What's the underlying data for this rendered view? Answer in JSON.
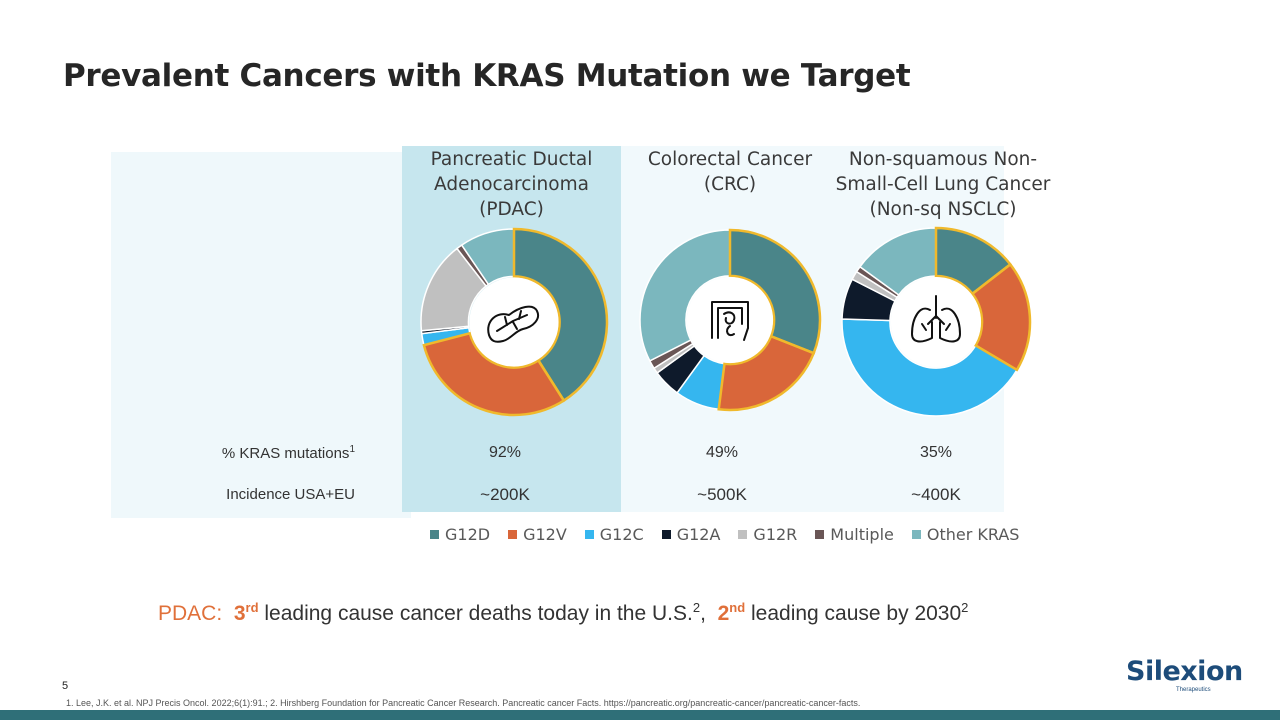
{
  "slide": {
    "title": "Prevalent Cancers with KRAS Mutation we  Target",
    "page_number": "5",
    "footnote": "1.  Lee, J.K. et al. NPJ Precis Oncol. 2022;6(1):91.; 2. Hirshberg Foundation for Pancreatic Cancer Research. Pancreatic cancer Facts. https://pancreatic.org/pancreatic-cancer/pancreatic-cancer-facts.",
    "row_kras_label": "% KRAS mutations",
    "row_kras_sup": "1",
    "row_incidence_label": "Incidence USA+EU",
    "logo_name": "Silexion",
    "logo_sub": "Therapeutics"
  },
  "note": {
    "lead": "PDAC:",
    "rank1": "3",
    "rank1_sup": "rd",
    "text1": " leading cause cancer deaths today in the U.S.",
    "ref1": "2",
    "sep": ",  ",
    "rank2": "2",
    "rank2_sup": "nd",
    "text2": " leading cause by 2030",
    "ref2": "2"
  },
  "colors": {
    "G12D": "#4a8589",
    "G12V": "#d9663a",
    "G12C": "#35b6ef",
    "G12A": "#0e1a2b",
    "G12R": "#c0c0c0",
    "Multiple": "#6a5656",
    "Other KRAS": "#7bb7be",
    "highlight": "#f0b92c"
  },
  "chart_data": [
    {
      "type": "pie",
      "title_lines": [
        "Pancreatic Ductal",
        "Adenocarcinoma",
        "(PDAC)"
      ],
      "icon": "pancreas-icon",
      "kras_pct": "92%",
      "incidence": "~200K",
      "categories": [
        "G12D",
        "G12V",
        "G12C",
        "G12A",
        "G12R",
        "Multiple",
        "Other KRAS"
      ],
      "values": [
        41,
        30,
        2,
        0.5,
        16,
        1,
        9.5
      ],
      "highlighted": [
        "G12D",
        "G12V"
      ]
    },
    {
      "type": "pie",
      "title_lines": [
        "Colorectal Cancer",
        "(CRC)"
      ],
      "icon": "intestine-icon",
      "kras_pct": "49%",
      "incidence": "~500K",
      "categories": [
        "G12D",
        "G12V",
        "G12C",
        "G12A",
        "G12R",
        "Multiple",
        "Other KRAS"
      ],
      "values": [
        31,
        21,
        8,
        5,
        1,
        1.5,
        32.5
      ],
      "highlighted": [
        "G12D",
        "G12V"
      ]
    },
    {
      "type": "pie",
      "title_lines": [
        "Non-squamous Non-",
        "Small-Cell Lung Cancer",
        "(Non-sq NSCLC)"
      ],
      "icon": "lungs-icon",
      "kras_pct": "35%",
      "incidence": "~400K",
      "categories": [
        "G12D",
        "G12V",
        "G12C",
        "G12A",
        "G12R",
        "Multiple",
        "Other KRAS"
      ],
      "values": [
        14.5,
        19,
        42,
        7,
        1.5,
        1,
        15
      ],
      "highlighted": [
        "G12D",
        "G12V"
      ]
    }
  ],
  "legend": [
    "G12D",
    "G12V",
    "G12C",
    "G12A",
    "G12R",
    "Multiple",
    "Other KRAS"
  ]
}
